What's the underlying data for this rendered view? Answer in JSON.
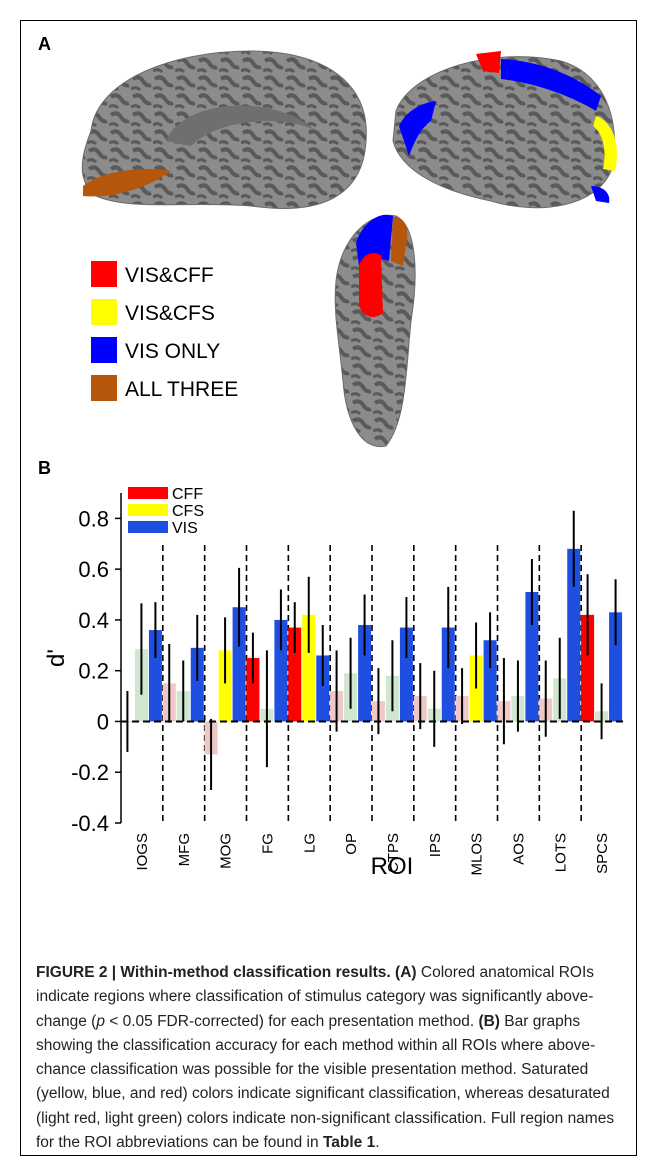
{
  "panel_a": {
    "label": "A",
    "legend": [
      {
        "label": "VIS&CFF",
        "color": "#ff0000"
      },
      {
        "label": "VIS&CFS",
        "color": "#ffff00"
      },
      {
        "label": "VIS ONLY",
        "color": "#0000ff"
      },
      {
        "label": "ALL THREE",
        "color": "#b5560a"
      }
    ]
  },
  "panel_b": {
    "label": "B"
  },
  "chart_data": {
    "type": "bar",
    "xlabel": "ROI",
    "ylabel": "d'",
    "ylim": [
      -0.4,
      0.9
    ],
    "yticks": [
      -0.4,
      -0.2,
      0,
      0.2,
      0.4,
      0.6,
      0.8
    ],
    "ytick_labels": [
      "-0.4",
      "-0.2",
      "0",
      "0.2",
      "0.4",
      "0.6",
      "0.8"
    ],
    "legend_placement": "top-left",
    "series": [
      {
        "name": "CFF",
        "color": "#ff0000",
        "faded_color": "#efc7c7"
      },
      {
        "name": "CFS",
        "color": "#ffff00",
        "faded_color": "#cfe6cf"
      },
      {
        "name": "VIS",
        "color": "#1f4fe0",
        "faded_color": "#c8d6f0"
      }
    ],
    "categories": [
      "IOGS",
      "MFG",
      "MOG",
      "FG",
      "LG",
      "OP",
      "CTPS",
      "IPS",
      "MLOS",
      "AOS",
      "LOTS",
      "SPCS"
    ],
    "groups": [
      {
        "roi": "IOGS",
        "bars": [
          {
            "series": "CFF",
            "value": 0.0,
            "err": 0.12,
            "significant": false
          },
          {
            "series": "CFS",
            "value": 0.285,
            "err": 0.18,
            "significant": false
          },
          {
            "series": "VIS",
            "value": 0.36,
            "err": 0.11,
            "significant": true
          }
        ]
      },
      {
        "roi": "MFG",
        "bars": [
          {
            "series": "CFF",
            "value": 0.15,
            "err": 0.155,
            "significant": false
          },
          {
            "series": "CFS",
            "value": 0.12,
            "err": 0.12,
            "significant": false
          },
          {
            "series": "VIS",
            "value": 0.29,
            "err": 0.13,
            "significant": true
          }
        ]
      },
      {
        "roi": "MOG",
        "bars": [
          {
            "series": "CFF",
            "value": -0.13,
            "err": 0.14,
            "significant": false
          },
          {
            "series": "CFS",
            "value": 0.28,
            "err": 0.13,
            "significant": true
          },
          {
            "series": "VIS",
            "value": 0.45,
            "err": 0.155,
            "significant": true
          }
        ]
      },
      {
        "roi": "FG",
        "bars": [
          {
            "series": "CFF",
            "value": 0.25,
            "err": 0.1,
            "significant": true
          },
          {
            "series": "CFS",
            "value": 0.05,
            "err": 0.23,
            "significant": false
          },
          {
            "series": "VIS",
            "value": 0.4,
            "err": 0.12,
            "significant": true
          }
        ]
      },
      {
        "roi": "LG",
        "bars": [
          {
            "series": "CFF",
            "value": 0.37,
            "err": 0.1,
            "significant": true
          },
          {
            "series": "CFS",
            "value": 0.42,
            "err": 0.15,
            "significant": true
          },
          {
            "series": "VIS",
            "value": 0.26,
            "err": 0.12,
            "significant": true
          }
        ]
      },
      {
        "roi": "OP",
        "bars": [
          {
            "series": "CFF",
            "value": 0.12,
            "err": 0.16,
            "significant": false
          },
          {
            "series": "CFS",
            "value": 0.19,
            "err": 0.14,
            "significant": false
          },
          {
            "series": "VIS",
            "value": 0.38,
            "err": 0.12,
            "significant": true
          }
        ]
      },
      {
        "roi": "CTPS",
        "bars": [
          {
            "series": "CFF",
            "value": 0.08,
            "err": 0.13,
            "significant": false
          },
          {
            "series": "CFS",
            "value": 0.18,
            "err": 0.14,
            "significant": false
          },
          {
            "series": "VIS",
            "value": 0.37,
            "err": 0.12,
            "significant": true
          }
        ]
      },
      {
        "roi": "IPS",
        "bars": [
          {
            "series": "CFF",
            "value": 0.1,
            "err": 0.13,
            "significant": false
          },
          {
            "series": "CFS",
            "value": 0.05,
            "err": 0.15,
            "significant": false
          },
          {
            "series": "VIS",
            "value": 0.37,
            "err": 0.16,
            "significant": true
          }
        ]
      },
      {
        "roi": "MLOS",
        "bars": [
          {
            "series": "CFF",
            "value": 0.1,
            "err": 0.11,
            "significant": false
          },
          {
            "series": "CFS",
            "value": 0.26,
            "err": 0.13,
            "significant": true
          },
          {
            "series": "VIS",
            "value": 0.32,
            "err": 0.11,
            "significant": true
          }
        ]
      },
      {
        "roi": "AOS",
        "bars": [
          {
            "series": "CFF",
            "value": 0.08,
            "err": 0.17,
            "significant": false
          },
          {
            "series": "CFS",
            "value": 0.1,
            "err": 0.14,
            "significant": false
          },
          {
            "series": "VIS",
            "value": 0.51,
            "err": 0.13,
            "significant": true
          }
        ]
      },
      {
        "roi": "LOTS",
        "bars": [
          {
            "series": "CFF",
            "value": 0.09,
            "err": 0.15,
            "significant": false
          },
          {
            "series": "CFS",
            "value": 0.17,
            "err": 0.16,
            "significant": false
          },
          {
            "series": "VIS",
            "value": 0.68,
            "err": 0.15,
            "significant": true
          }
        ]
      },
      {
        "roi": "SPCS",
        "bars": [
          {
            "series": "CFF",
            "value": 0.42,
            "err": 0.16,
            "significant": true
          },
          {
            "series": "CFS",
            "value": 0.04,
            "err": 0.11,
            "significant": false
          },
          {
            "series": "VIS",
            "value": 0.43,
            "err": 0.13,
            "significant": true
          }
        ]
      }
    ]
  },
  "caption": {
    "figure_label": "FIGURE 2 | Within-method classification results.",
    "part_a_label": "(A)",
    "part_a_text_1": " Colored anatomical ROIs indicate regions where classification of stimulus category was significantly above-change (",
    "p_symbol": "p",
    "part_a_text_2": " < 0.05 FDR-corrected) for each presentation method. ",
    "part_b_label": "(B)",
    "part_b_text": " Bar graphs showing the classification accuracy for each method within all ROIs where above-chance classification was possible for the visible presentation method. Saturated (yellow, blue, and red) colors indicate significant classification, whereas desaturated (light red, light green) colors indicate non-significant classification. Full region names for the ROI abbreviations can be found in ",
    "table_ref": "Table 1",
    "end": "."
  }
}
